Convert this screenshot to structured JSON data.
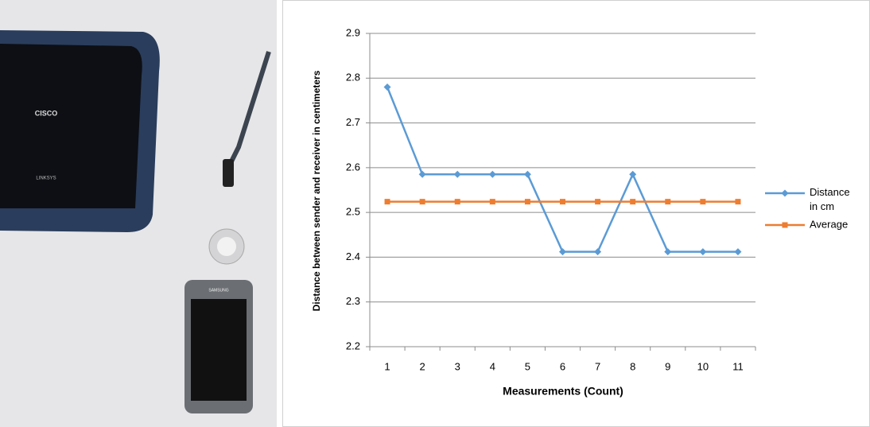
{
  "photo": {
    "router_brand": "CISCO",
    "router_model": "LINKSYS",
    "phone_brand": "SAMSUNG"
  },
  "chart_data": {
    "type": "line",
    "categories": [
      "1",
      "2",
      "3",
      "4",
      "5",
      "6",
      "7",
      "8",
      "9",
      "10",
      "11"
    ],
    "series": [
      {
        "name": "Distance in cm",
        "color": "#5b9bd5",
        "marker": "diamond",
        "values": [
          2.78,
          2.585,
          2.585,
          2.585,
          2.585,
          2.412,
          2.412,
          2.585,
          2.412,
          2.412,
          2.412
        ]
      },
      {
        "name": "Average",
        "color": "#ed7d31",
        "marker": "square",
        "values": [
          2.524,
          2.524,
          2.524,
          2.524,
          2.524,
          2.524,
          2.524,
          2.524,
          2.524,
          2.524,
          2.524
        ]
      }
    ],
    "ylim": [
      2.2,
      2.9
    ],
    "yticks": [
      2.2,
      2.3,
      2.4,
      2.5,
      2.6,
      2.7,
      2.8,
      2.9
    ],
    "grid": true,
    "x_label": "Measurements (Count)",
    "y_label": "Distance between sender and receiver in centimeters",
    "legend": "right"
  }
}
